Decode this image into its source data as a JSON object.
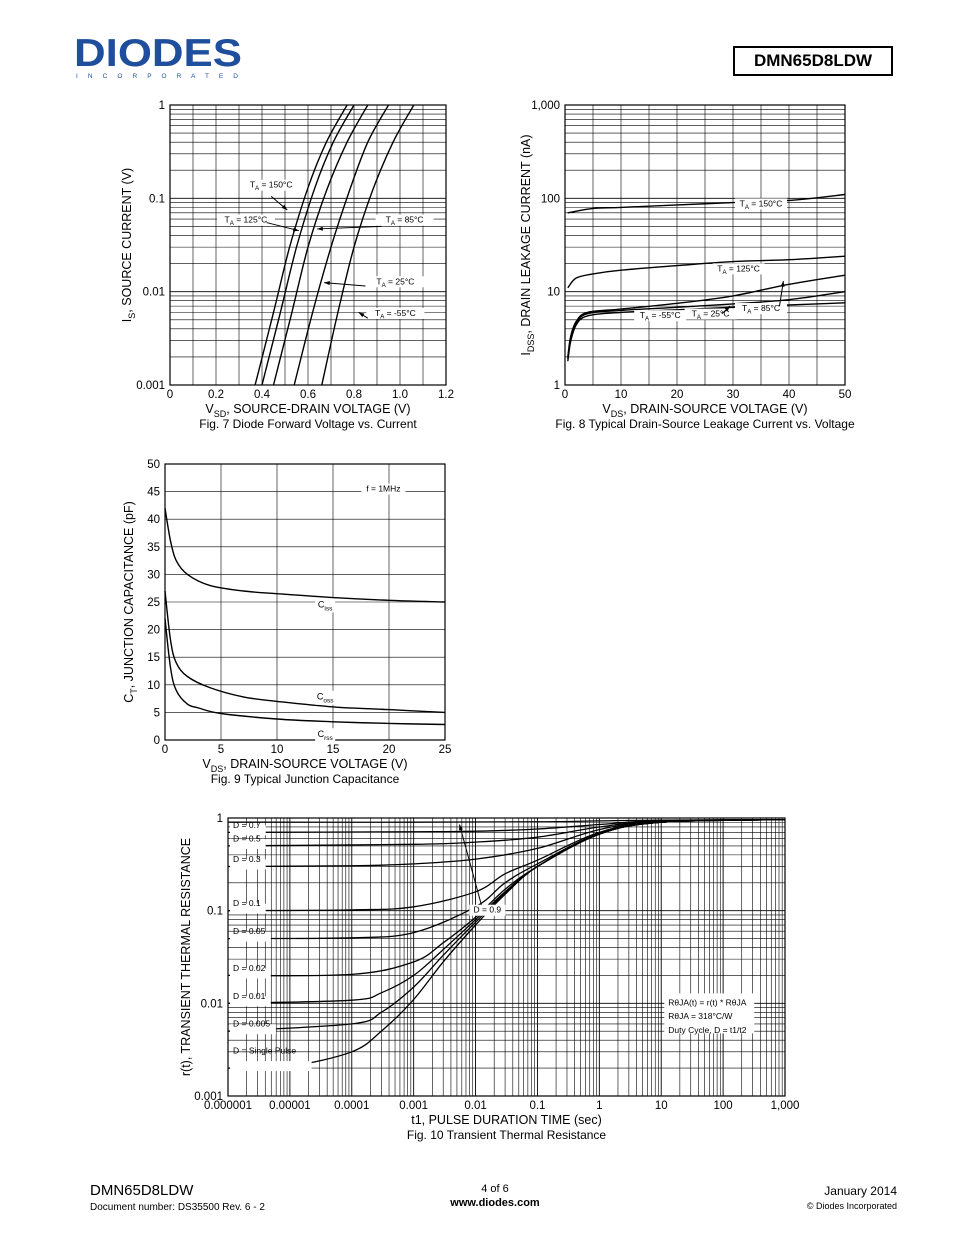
{
  "header": {
    "logo_text": "DIODES",
    "logo_subtext": "I N C O R P O R A T E D",
    "part_number": "DMN65D8LDW"
  },
  "footer": {
    "part_number": "DMN65D8LDW",
    "document_number": "Document number: DS35500 Rev. 6 - 2",
    "page": "4 of 6",
    "url": "www.diodes.com",
    "date": "January 2014",
    "copyright": "© Diodes Incorporated"
  },
  "colors": {
    "line": "#000000",
    "grid": "#000000",
    "brand": "#1f4e9c"
  },
  "chart_data": [
    {
      "id": "fig7",
      "type": "line",
      "title": "Fig. 7 Diode Forward Voltage vs. Current",
      "xlabel": "VSD, SOURCE-DRAIN VOLTAGE (V)",
      "ylabel": "IS, SOURCE CURRENT (V)",
      "xscale": "linear",
      "yscale": "log",
      "xlim": [
        0,
        1.2
      ],
      "ylim": [
        0.001,
        1
      ],
      "xticks": [
        "0",
        "0.2",
        "0.4",
        "0.6",
        "0.8",
        "1.0",
        "1.2"
      ],
      "yticks": [
        "0.001",
        "0.01",
        "0.1",
        "1"
      ],
      "series": [
        {
          "name": "TA = 150°C",
          "points": [
            [
              0.37,
              0.001
            ],
            [
              0.45,
              0.006
            ],
            [
              0.52,
              0.03
            ],
            [
              0.6,
              0.13
            ],
            [
              0.68,
              0.4
            ],
            [
              0.77,
              1.0
            ]
          ]
        },
        {
          "name": "TA = 125°C",
          "points": [
            [
              0.4,
              0.001
            ],
            [
              0.48,
              0.006
            ],
            [
              0.55,
              0.03
            ],
            [
              0.63,
              0.13
            ],
            [
              0.71,
              0.4
            ],
            [
              0.8,
              1.0
            ]
          ]
        },
        {
          "name": "TA = 85°C",
          "points": [
            [
              0.45,
              0.001
            ],
            [
              0.53,
              0.006
            ],
            [
              0.6,
              0.03
            ],
            [
              0.68,
              0.12
            ],
            [
              0.77,
              0.4
            ],
            [
              0.86,
              1.0
            ]
          ]
        },
        {
          "name": "TA = 25°C",
          "points": [
            [
              0.54,
              0.001
            ],
            [
              0.62,
              0.006
            ],
            [
              0.7,
              0.03
            ],
            [
              0.78,
              0.12
            ],
            [
              0.86,
              0.4
            ],
            [
              0.95,
              1.0
            ]
          ]
        },
        {
          "name": "TA = -55°C",
          "points": [
            [
              0.66,
              0.001
            ],
            [
              0.73,
              0.006
            ],
            [
              0.8,
              0.03
            ],
            [
              0.88,
              0.12
            ],
            [
              0.97,
              0.4
            ],
            [
              1.06,
              1.0
            ]
          ]
        }
      ],
      "annotations": [
        {
          "text": "TA = 150°C",
          "x": 0.44,
          "y": 0.13
        },
        {
          "text": "TA = 125°C",
          "x": 0.33,
          "y": 0.055
        },
        {
          "text": "TA = 85°C",
          "x": 1.02,
          "y": 0.055
        },
        {
          "text": "TA = 25°C",
          "x": 0.98,
          "y": 0.012
        },
        {
          "text": "TA = -55°C",
          "x": 0.98,
          "y": 0.0055
        }
      ]
    },
    {
      "id": "fig8",
      "type": "line",
      "title": "Fig. 8 Typical Drain-Source Leakage Current vs. Voltage",
      "xlabel": "VDS, DRAIN-SOURCE VOLTAGE (V)",
      "ylabel": "IDSS, DRAIN LEAKAGE CURRENT (nA)",
      "xscale": "linear",
      "yscale": "log",
      "xlim": [
        0,
        50
      ],
      "ylim": [
        1,
        1000
      ],
      "xticks": [
        "0",
        "10",
        "20",
        "30",
        "40",
        "50"
      ],
      "yticks": [
        "1",
        "10",
        "100",
        "1,000"
      ],
      "series": [
        {
          "name": "TA = 150°C",
          "points": [
            [
              0.5,
              70
            ],
            [
              5,
              78
            ],
            [
              10,
              80
            ],
            [
              20,
              85
            ],
            [
              30,
              90
            ],
            [
              40,
              95
            ],
            [
              50,
              110
            ]
          ]
        },
        {
          "name": "TA = 125°C",
          "points": [
            [
              0.5,
              11
            ],
            [
              2,
              14
            ],
            [
              5,
              15.5
            ],
            [
              10,
              17
            ],
            [
              20,
              19
            ],
            [
              30,
              21
            ],
            [
              40,
              22
            ],
            [
              50,
              24
            ]
          ]
        },
        {
          "name": "TA = 85°C",
          "points": [
            [
              0.5,
              2
            ],
            [
              1,
              3.3
            ],
            [
              2,
              4.8
            ],
            [
              4,
              6
            ],
            [
              10,
              6.5
            ],
            [
              20,
              7.5
            ],
            [
              30,
              9
            ],
            [
              40,
              12
            ],
            [
              50,
              15
            ]
          ]
        },
        {
          "name": "TA = 25°C",
          "points": [
            [
              0.5,
              1.9
            ],
            [
              1,
              3.1
            ],
            [
              2,
              4.6
            ],
            [
              4,
              5.8
            ],
            [
              10,
              6.3
            ],
            [
              20,
              6.8
            ],
            [
              30,
              7.4
            ],
            [
              40,
              8.2
            ],
            [
              50,
              10
            ]
          ]
        },
        {
          "name": "TA = -55°C",
          "points": [
            [
              0.5,
              1.8
            ],
            [
              1,
              2.9
            ],
            [
              2,
              4.4
            ],
            [
              4,
              5.5
            ],
            [
              10,
              6
            ],
            [
              20,
              6.4
            ],
            [
              30,
              6.8
            ],
            [
              40,
              7.2
            ],
            [
              50,
              7.6
            ]
          ]
        }
      ],
      "annotations": [
        {
          "text": "TA = 150°C",
          "x": 35,
          "y": 82
        },
        {
          "text": "TA = 125°C",
          "x": 31,
          "y": 16.5
        },
        {
          "text": "TA = -55°C",
          "x": 17,
          "y": 5.2
        },
        {
          "text": "TA = 25°C",
          "x": 26,
          "y": 5.4
        },
        {
          "text": "TA = 85°C",
          "x": 35,
          "y": 6.2
        }
      ]
    },
    {
      "id": "fig9",
      "type": "line",
      "title": "Fig. 9 Typical Junction Capacitance",
      "xlabel": "VDS, DRAIN-SOURCE VOLTAGE (V)",
      "ylabel": "CT, JUNCTION CAPACITANCE (pF)",
      "xscale": "linear",
      "yscale": "linear",
      "xlim": [
        0,
        25
      ],
      "ylim": [
        0,
        50
      ],
      "xticks": [
        "0",
        "5",
        "10",
        "15",
        "20",
        "25"
      ],
      "yticks": [
        "0",
        "5",
        "10",
        "15",
        "20",
        "25",
        "30",
        "35",
        "40",
        "45",
        "50"
      ],
      "series": [
        {
          "name": "Ciss",
          "points": [
            [
              0,
              42
            ],
            [
              0.5,
              36
            ],
            [
              1,
              32.5
            ],
            [
              2,
              30
            ],
            [
              4,
              28
            ],
            [
              7,
              27
            ],
            [
              10,
              26.5
            ],
            [
              15,
              25.8
            ],
            [
              20,
              25.3
            ],
            [
              25,
              25
            ]
          ]
        },
        {
          "name": "Coss",
          "points": [
            [
              0,
              27
            ],
            [
              0.5,
              18
            ],
            [
              1,
              14
            ],
            [
              2,
              11.5
            ],
            [
              4,
              9.5
            ],
            [
              7,
              7.8
            ],
            [
              10,
              7
            ],
            [
              15,
              6
            ],
            [
              20,
              5.5
            ],
            [
              25,
              5
            ]
          ]
        },
        {
          "name": "Crss",
          "points": [
            [
              0,
              22
            ],
            [
              0.5,
              13
            ],
            [
              1,
              9
            ],
            [
              2,
              6.5
            ],
            [
              3,
              5.8
            ],
            [
              5,
              4.8
            ],
            [
              10,
              3.8
            ],
            [
              15,
              3.3
            ],
            [
              20,
              3
            ],
            [
              25,
              2.8
            ]
          ]
        }
      ],
      "annotations": [
        {
          "text": "f = 1MHz",
          "x": 19.5,
          "y": 45
        },
        {
          "text": "Ciss",
          "x": 14.3,
          "y": 24
        },
        {
          "text": "Coss",
          "x": 14.3,
          "y": 7.3
        },
        {
          "text": "Crss",
          "x": 14.3,
          "y": 0.5
        }
      ]
    },
    {
      "id": "fig10",
      "type": "line",
      "title": "Fig. 10 Transient Thermal Resistance",
      "xlabel": "t1, PULSE DURATION TIME (sec)",
      "ylabel": "r(t), TRANSIENT THERMAL RESISTANCE",
      "xscale": "log",
      "yscale": "log",
      "xlim": [
        1e-06,
        1000
      ],
      "ylim": [
        0.001,
        1
      ],
      "xticks": [
        "0.000001",
        "0.00001",
        "0.0001",
        "0.001",
        "0.01",
        "0.1",
        "1",
        "10",
        "100",
        "1,000"
      ],
      "yticks": [
        "0.001",
        "0.01",
        "0.1",
        "1"
      ],
      "series": [
        {
          "name": "D = 0.9",
          "points": [
            [
              1e-06,
              0.9
            ],
            [
              0.001,
              0.9
            ],
            [
              0.1,
              0.91
            ],
            [
              1,
              0.93
            ],
            [
              10,
              0.95
            ],
            [
              1000,
              0.96
            ]
          ]
        },
        {
          "name": "D = 0.7",
          "points": [
            [
              1e-06,
              0.7
            ],
            [
              0.001,
              0.71
            ],
            [
              0.01,
              0.72
            ],
            [
              0.1,
              0.76
            ],
            [
              1,
              0.85
            ],
            [
              10,
              0.94
            ],
            [
              1000,
              0.96
            ]
          ]
        },
        {
          "name": "D = 0.5",
          "points": [
            [
              1e-06,
              0.5
            ],
            [
              0.001,
              0.52
            ],
            [
              0.01,
              0.55
            ],
            [
              0.1,
              0.62
            ],
            [
              1,
              0.8
            ],
            [
              10,
              0.93
            ],
            [
              1000,
              0.96
            ]
          ]
        },
        {
          "name": "D = 0.3",
          "points": [
            [
              1e-06,
              0.3
            ],
            [
              0.0001,
              0.305
            ],
            [
              0.001,
              0.32
            ],
            [
              0.01,
              0.36
            ],
            [
              0.1,
              0.47
            ],
            [
              1,
              0.75
            ],
            [
              10,
              0.92
            ],
            [
              1000,
              0.96
            ]
          ]
        },
        {
          "name": "D = 0.1",
          "points": [
            [
              1e-06,
              0.1
            ],
            [
              0.0001,
              0.102
            ],
            [
              0.001,
              0.11
            ],
            [
              0.01,
              0.16
            ],
            [
              0.03,
              0.25
            ],
            [
              0.1,
              0.35
            ],
            [
              1,
              0.7
            ],
            [
              10,
              0.91
            ],
            [
              1000,
              0.96
            ]
          ]
        },
        {
          "name": "D = 0.05",
          "points": [
            [
              1e-06,
              0.05
            ],
            [
              0.0001,
              0.051
            ],
            [
              0.001,
              0.058
            ],
            [
              0.01,
              0.11
            ],
            [
              0.03,
              0.2
            ],
            [
              0.1,
              0.32
            ],
            [
              1,
              0.68
            ],
            [
              10,
              0.9
            ],
            [
              1000,
              0.96
            ]
          ]
        },
        {
          "name": "D = 0.02",
          "points": [
            [
              1e-06,
              0.02
            ],
            [
              0.0001,
              0.0205
            ],
            [
              0.001,
              0.028
            ],
            [
              0.003,
              0.045
            ],
            [
              0.01,
              0.085
            ],
            [
              0.03,
              0.17
            ],
            [
              0.1,
              0.3
            ],
            [
              1,
              0.67
            ],
            [
              10,
              0.9
            ],
            [
              1000,
              0.96
            ]
          ]
        },
        {
          "name": "D = 0.01",
          "points": [
            [
              1e-06,
              0.01
            ],
            [
              0.0001,
              0.0108
            ],
            [
              0.0003,
              0.013
            ],
            [
              0.001,
              0.02
            ],
            [
              0.003,
              0.038
            ],
            [
              0.01,
              0.08
            ],
            [
              0.03,
              0.16
            ],
            [
              0.1,
              0.3
            ],
            [
              1,
              0.67
            ],
            [
              10,
              0.9
            ],
            [
              1000,
              0.96
            ]
          ]
        },
        {
          "name": "D = 0.005",
          "points": [
            [
              1e-06,
              0.005
            ],
            [
              0.0001,
              0.006
            ],
            [
              0.0003,
              0.008
            ],
            [
              0.001,
              0.015
            ],
            [
              0.003,
              0.033
            ],
            [
              0.01,
              0.075
            ],
            [
              0.03,
              0.155
            ],
            [
              0.1,
              0.3
            ],
            [
              1,
              0.67
            ],
            [
              10,
              0.9
            ],
            [
              1000,
              0.96
            ]
          ]
        },
        {
          "name": "D = Single Pulse",
          "points": [
            [
              1e-06,
              0.002
            ],
            [
              1e-05,
              0.0021
            ],
            [
              0.0001,
              0.003
            ],
            [
              0.0003,
              0.005
            ],
            [
              0.001,
              0.011
            ],
            [
              0.003,
              0.028
            ],
            [
              0.01,
              0.07
            ],
            [
              0.03,
              0.15
            ],
            [
              0.1,
              0.3
            ],
            [
              1,
              0.67
            ],
            [
              10,
              0.9
            ],
            [
              1000,
              0.96
            ]
          ]
        }
      ],
      "annotations": [
        {
          "text": "D = 0.9",
          "x": 0.018,
          "y": 0.095
        },
        {
          "text": "RθJA(t) = r(t) * RθJA",
          "x": 13,
          "y": 0.0095
        },
        {
          "text": "RθJA = 318°C/W",
          "x": 13,
          "y": 0.0068
        },
        {
          "text": "Duty Cycle, D = t1/t2",
          "x": 13,
          "y": 0.0048
        }
      ]
    }
  ]
}
